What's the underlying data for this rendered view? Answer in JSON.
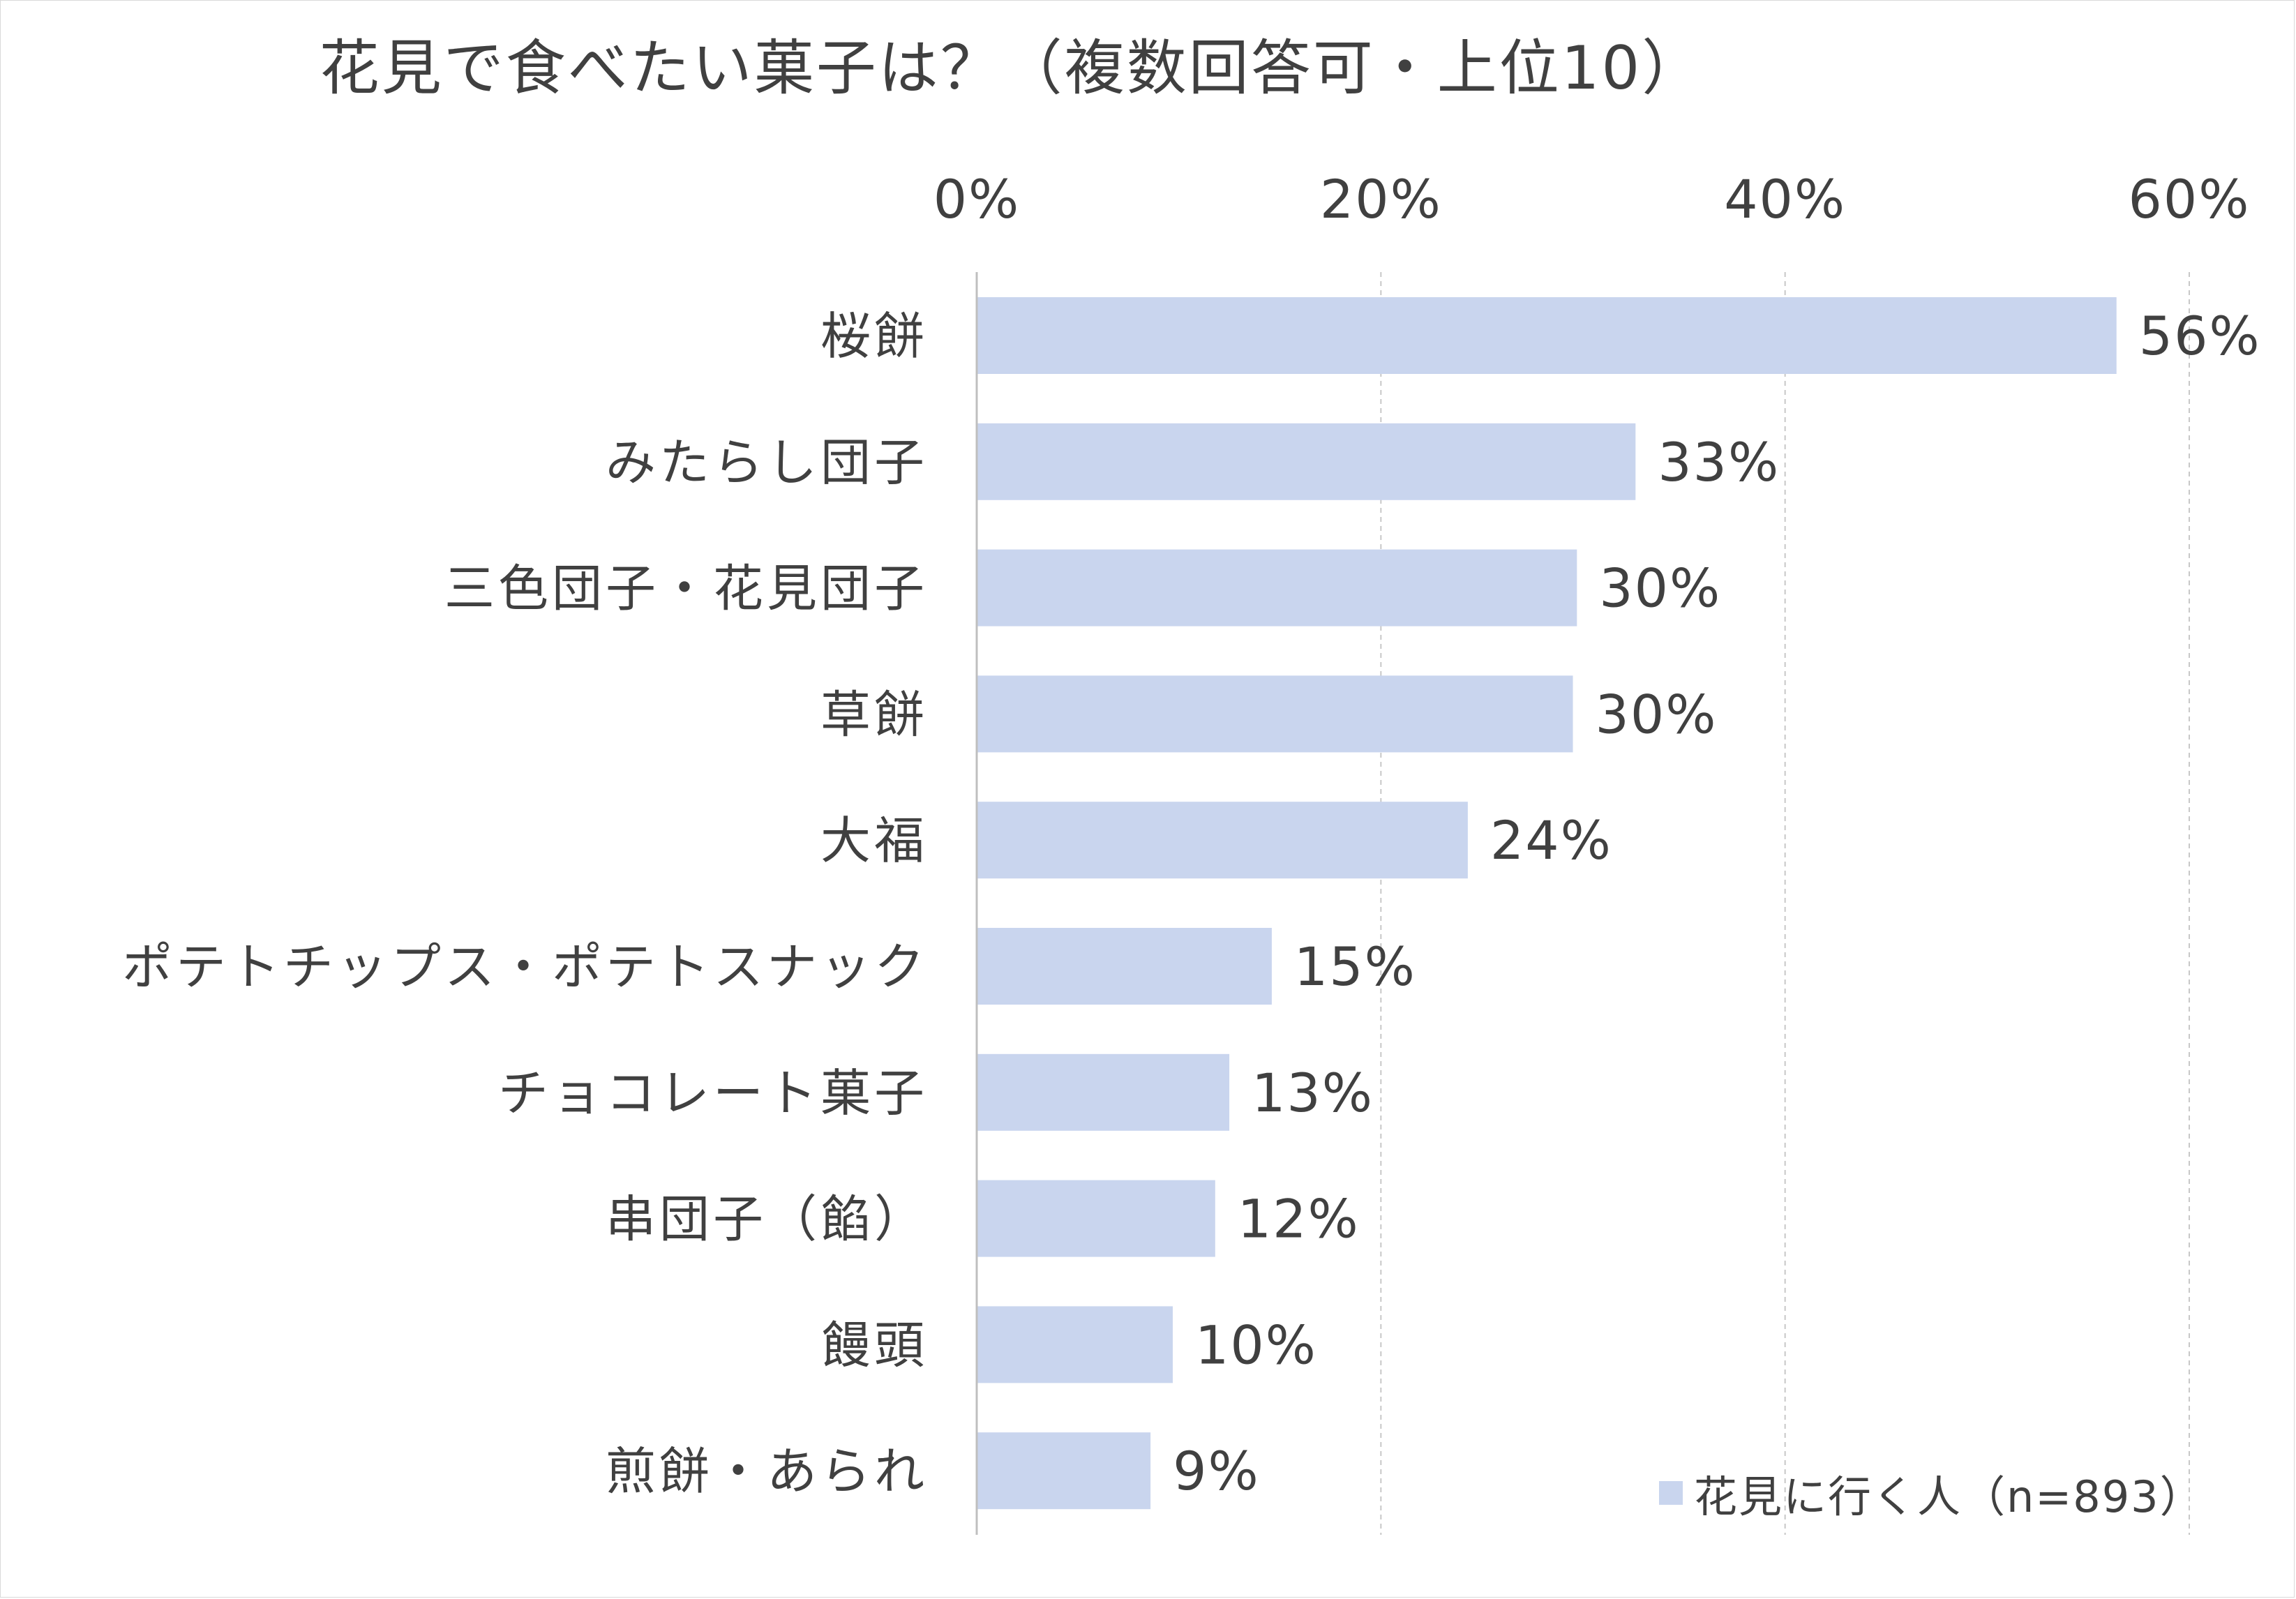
{
  "chart_data": {
    "type": "bar",
    "orientation": "horizontal",
    "title": "花見で食べたい菓子は？（複数回答可・上位10）",
    "categories": [
      "桜餅",
      "みたらし団子",
      "三色団子・花見団子",
      "草餅",
      "大福",
      "ポテトチップス・ポテトスナック",
      "チョコレート菓子",
      "串団子（餡）",
      "饅頭",
      "煎餅・あられ"
    ],
    "series": [
      {
        "name": "花見に行く人（n=893）",
        "values": [
          56.4,
          32.6,
          29.7,
          29.5,
          24.3,
          14.6,
          12.5,
          11.8,
          9.7,
          8.6
        ],
        "labels": [
          "56%",
          "33%",
          "30%",
          "30%",
          "24%",
          "15%",
          "13%",
          "12%",
          "10%",
          "9%"
        ]
      }
    ],
    "x_axis": {
      "position": "top",
      "range": [
        0,
        60
      ],
      "ticks": [
        0,
        20,
        40,
        60
      ],
      "tick_labels": [
        "0%",
        "20%",
        "40%",
        "60%"
      ]
    },
    "grid": true,
    "legend_position": "bottom-right",
    "colors": {
      "bar": "#c9d5ee",
      "grid": "#c8c8c8",
      "axis": "#bfbfbf",
      "text": "#404040"
    }
  }
}
